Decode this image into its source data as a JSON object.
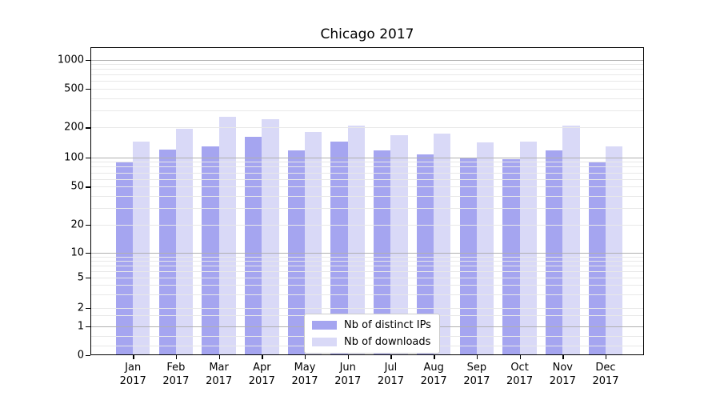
{
  "title": {
    "text": "Chicago 2017"
  },
  "legend": {
    "items": [
      {
        "label": "Nb of distinct IPs",
        "swatch": "#a5a5f0"
      },
      {
        "label": "Nb of downloads",
        "swatch": "#d9d9f7"
      }
    ]
  },
  "colors": {
    "bar_ips": "#a5a5f0",
    "bar_downloads": "#d9d9f7",
    "grid_major": "#b0b0b0",
    "grid_minor": "#e8e8e8",
    "axis": "#000000",
    "background": "#ffffff"
  },
  "chart_data": {
    "type": "bar",
    "title": "Chicago 2017",
    "categories": [
      "Jan 2017",
      "Feb 2017",
      "Mar 2017",
      "Apr 2017",
      "May 2017",
      "Jun 2017",
      "Jul 2017",
      "Aug 2017",
      "Sep 2017",
      "Oct 2017",
      "Nov 2017",
      "Dec 2017"
    ],
    "x_tick_lines": [
      [
        "Jan",
        "2017"
      ],
      [
        "Feb",
        "2017"
      ],
      [
        "Mar",
        "2017"
      ],
      [
        "Apr",
        "2017"
      ],
      [
        "May",
        "2017"
      ],
      [
        "Jun",
        "2017"
      ],
      [
        "Jul",
        "2017"
      ],
      [
        "Aug",
        "2017"
      ],
      [
        "Sep",
        "2017"
      ],
      [
        "Oct",
        "2017"
      ],
      [
        "Nov",
        "2017"
      ],
      [
        "Dec",
        "2017"
      ]
    ],
    "series": [
      {
        "name": "Nb of distinct IPs",
        "color": "#a5a5f0",
        "values": [
          90,
          120,
          130,
          160,
          118,
          145,
          118,
          108,
          99,
          95,
          117,
          89
        ]
      },
      {
        "name": "Nb of downloads",
        "color": "#d9d9f7",
        "values": [
          143,
          194,
          255,
          243,
          181,
          210,
          167,
          175,
          142,
          143,
          208,
          130
        ]
      }
    ],
    "xlabel": "",
    "ylabel": "",
    "yscale": "log (with 0 baseline, symlog-like)",
    "ylim": [
      0,
      1000
    ],
    "ytick_labels": [
      "1000",
      "500",
      "200",
      "100",
      "50",
      "20",
      "10",
      "5",
      "2",
      "1",
      "0"
    ],
    "ytick_values": [
      1000,
      500,
      200,
      100,
      50,
      20,
      10,
      5,
      2,
      1,
      0
    ],
    "grid": true,
    "legend_position": "lower center"
  }
}
